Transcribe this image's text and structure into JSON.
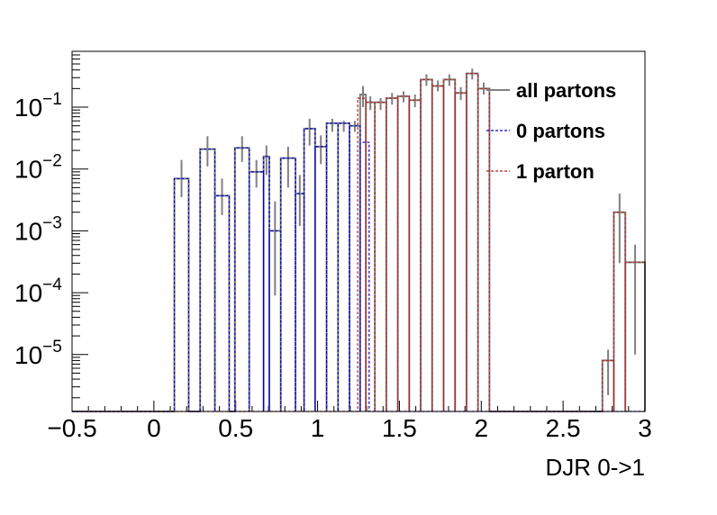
{
  "chart_data": {
    "type": "histogram",
    "xlabel": "DJR 0->1",
    "xlim": [
      -0.5,
      3.0
    ],
    "ylim": [
      1.2e-06,
      0.8
    ],
    "ylog": true,
    "bin_width": 0.0875,
    "x_ticks": [
      "−0.5",
      "0",
      "0.5",
      "1",
      "1.5",
      "2",
      "2.5",
      "3"
    ],
    "x_tick_values": [
      -0.5,
      0,
      0.5,
      1,
      1.5,
      2,
      2.5,
      3
    ],
    "y_ticks": [
      {
        "value": 1e-05,
        "base": "10",
        "exp": "−5"
      },
      {
        "value": 0.0001,
        "base": "10",
        "exp": "−4"
      },
      {
        "value": 0.001,
        "base": "10",
        "exp": "−3"
      },
      {
        "value": 0.01,
        "base": "10",
        "exp": "−2"
      },
      {
        "value": 0.1,
        "base": "10",
        "exp": "−1"
      }
    ],
    "legend": {
      "position": "top-right",
      "entries": [
        {
          "label": "all partons",
          "color": "#808080",
          "style": "solid"
        },
        {
          "label": "0 partons",
          "color": "#0000cc",
          "style": "dashed"
        },
        {
          "label": "1 parton",
          "color": "#b22222",
          "style": "dashed"
        }
      ]
    },
    "series": [
      {
        "name": "all partons",
        "color": "#808080",
        "style": "solid",
        "bins": [
          {
            "x0": 0.125,
            "x1": 0.2125,
            "y": 0.007,
            "err": [
              0.0035,
              0.014
            ]
          },
          {
            "x0": 0.2825,
            "x1": 0.3725,
            "y": 0.021,
            "err": [
              0.011,
              0.034
            ]
          },
          {
            "x0": 0.3725,
            "x1": 0.46,
            "y": 0.0037,
            "err": [
              0.0018,
              0.007
            ]
          },
          {
            "x0": 0.495,
            "x1": 0.5825,
            "y": 0.022,
            "err": [
              0.013,
              0.034
            ]
          },
          {
            "x0": 0.5825,
            "x1": 0.67,
            "y": 0.009,
            "err": [
              0.005,
              0.014
            ]
          },
          {
            "x0": 0.67,
            "x1": 0.705,
            "y": 0.016,
            "err": [
              0.008,
              0.024
            ]
          },
          {
            "x0": 0.705,
            "x1": 0.775,
            "y": 0.001,
            "err": [
              9e-05,
              0.003
            ]
          },
          {
            "x0": 0.775,
            "x1": 0.865,
            "y": 0.015,
            "err": [
              0.005,
              0.023
            ]
          },
          {
            "x0": 0.865,
            "x1": 0.9175,
            "y": 0.004,
            "err": [
              0.0012,
              0.008
            ]
          },
          {
            "x0": 0.9175,
            "x1": 0.985,
            "y": 0.045,
            "err": [
              0.024,
              0.065
            ]
          },
          {
            "x0": 0.985,
            "x1": 1.055,
            "y": 0.023,
            "err": [
              0.012,
              0.035
            ]
          },
          {
            "x0": 1.055,
            "x1": 1.125,
            "y": 0.055,
            "err": [
              0.04,
              0.065
            ]
          },
          {
            "x0": 1.125,
            "x1": 1.195,
            "y": 0.055,
            "err": [
              0.04,
              0.06
            ]
          },
          {
            "x0": 1.195,
            "x1": 1.26,
            "y": 0.05,
            "err": [
              0.04,
              0.06
            ]
          },
          {
            "x0": 1.26,
            "x1": 1.295,
            "y": 0.16,
            "err": [
              0.1,
              0.22
            ]
          },
          {
            "x0": 1.295,
            "x1": 1.35,
            "y": 0.12,
            "err": [
              0.09,
              0.15
            ]
          },
          {
            "x0": 1.35,
            "x1": 1.42,
            "y": 0.12,
            "err": [
              0.09,
              0.14
            ]
          },
          {
            "x0": 1.42,
            "x1": 1.49,
            "y": 0.14,
            "err": [
              0.11,
              0.17
            ]
          },
          {
            "x0": 1.49,
            "x1": 1.56,
            "y": 0.15,
            "err": [
              0.12,
              0.18
            ]
          },
          {
            "x0": 1.56,
            "x1": 1.63,
            "y": 0.13,
            "err": [
              0.1,
              0.16
            ]
          },
          {
            "x0": 1.63,
            "x1": 1.7,
            "y": 0.28,
            "err": [
              0.22,
              0.34
            ]
          },
          {
            "x0": 1.7,
            "x1": 1.77,
            "y": 0.22,
            "err": [
              0.18,
              0.27
            ]
          },
          {
            "x0": 1.77,
            "x1": 1.84,
            "y": 0.28,
            "err": [
              0.22,
              0.34
            ]
          },
          {
            "x0": 1.84,
            "x1": 1.91,
            "y": 0.17,
            "err": [
              0.13,
              0.21
            ]
          },
          {
            "x0": 1.91,
            "x1": 1.98,
            "y": 0.35,
            "err": [
              0.28,
              0.42
            ]
          },
          {
            "x0": 1.98,
            "x1": 2.05,
            "y": 0.2,
            "err": [
              0.16,
              0.25
            ]
          },
          {
            "x0": 2.74,
            "x1": 2.81,
            "y": 8e-06,
            "err": [
              2.2e-06,
              1.2e-05
            ]
          },
          {
            "x0": 2.81,
            "x1": 2.88,
            "y": 0.002,
            "err": [
              0.0003,
              0.004
            ]
          },
          {
            "x0": 2.88,
            "x1": 3.0,
            "y": 0.00031,
            "err": [
              1e-05,
              0.0006
            ]
          }
        ]
      },
      {
        "name": "0 partons",
        "color": "#0000cc",
        "style": "dashed",
        "bins": [
          {
            "x0": 0.125,
            "x1": 0.2125,
            "y": 0.007
          },
          {
            "x0": 0.2825,
            "x1": 0.3725,
            "y": 0.021
          },
          {
            "x0": 0.3725,
            "x1": 0.46,
            "y": 0.0037
          },
          {
            "x0": 0.495,
            "x1": 0.5825,
            "y": 0.022
          },
          {
            "x0": 0.5825,
            "x1": 0.67,
            "y": 0.009
          },
          {
            "x0": 0.67,
            "x1": 0.705,
            "y": 0.016
          },
          {
            "x0": 0.705,
            "x1": 0.775,
            "y": 0.001
          },
          {
            "x0": 0.775,
            "x1": 0.865,
            "y": 0.015
          },
          {
            "x0": 0.865,
            "x1": 0.9175,
            "y": 0.004
          },
          {
            "x0": 0.9175,
            "x1": 0.985,
            "y": 0.045
          },
          {
            "x0": 0.985,
            "x1": 1.055,
            "y": 0.023
          },
          {
            "x0": 1.055,
            "x1": 1.125,
            "y": 0.055
          },
          {
            "x0": 1.125,
            "x1": 1.195,
            "y": 0.055
          },
          {
            "x0": 1.195,
            "x1": 1.26,
            "y": 0.05
          },
          {
            "x0": 1.26,
            "x1": 1.315,
            "y": 0.027
          }
        ]
      },
      {
        "name": "1 parton",
        "color": "#b22222",
        "style": "dashed",
        "bins": [
          {
            "x0": 1.245,
            "x1": 1.295,
            "y": 0.14
          },
          {
            "x0": 1.295,
            "x1": 1.35,
            "y": 0.12
          },
          {
            "x0": 1.35,
            "x1": 1.42,
            "y": 0.12
          },
          {
            "x0": 1.42,
            "x1": 1.49,
            "y": 0.14
          },
          {
            "x0": 1.49,
            "x1": 1.56,
            "y": 0.15
          },
          {
            "x0": 1.56,
            "x1": 1.63,
            "y": 0.13
          },
          {
            "x0": 1.63,
            "x1": 1.7,
            "y": 0.28
          },
          {
            "x0": 1.7,
            "x1": 1.77,
            "y": 0.22
          },
          {
            "x0": 1.77,
            "x1": 1.84,
            "y": 0.28
          },
          {
            "x0": 1.84,
            "x1": 1.91,
            "y": 0.17
          },
          {
            "x0": 1.91,
            "x1": 1.98,
            "y": 0.35
          },
          {
            "x0": 1.98,
            "x1": 2.05,
            "y": 0.2
          },
          {
            "x0": 2.74,
            "x1": 2.81,
            "y": 8e-06
          },
          {
            "x0": 2.81,
            "x1": 2.88,
            "y": 0.002
          },
          {
            "x0": 2.88,
            "x1": 3.0,
            "y": 0.00031
          }
        ]
      }
    ]
  }
}
